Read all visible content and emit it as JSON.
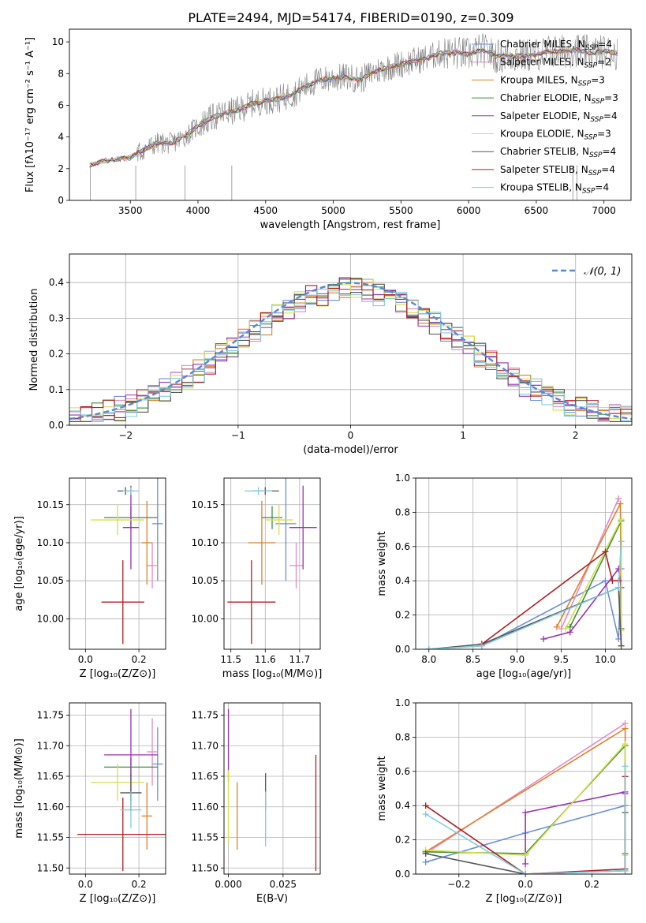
{
  "figure_title": "PLATE=2494, MJD=54174, FIBERID=0190, z=0.309",
  "colors": {
    "Chabrier MILES": "#6a8fd9",
    "Salpeter MILES": "#e38bc4",
    "Kroupa MILES": "#e0802a",
    "Chabrier ELODIE": "#3f8f3f",
    "Salpeter ELODIE": "#9a32b0",
    "Kroupa ELODIE": "#d6e04a",
    "Chabrier STELIB": "#555555",
    "Salpeter STELIB": "#b02020",
    "Kroupa STELIB": "#80cce0"
  },
  "chart_data": [
    {
      "id": "spectrum",
      "type": "line",
      "xlabel": "wavelength [Angstrom, rest frame]",
      "ylabel": "Flux [fλ10⁻¹⁷ erg cm⁻² s⁻¹ A⁻¹]",
      "xlim": [
        3050,
        7200
      ],
      "ylim": [
        0,
        10.8
      ],
      "xticks": [
        3500,
        4000,
        4500,
        5000,
        5500,
        6000,
        6500,
        7000
      ],
      "yticks": [
        0,
        2,
        4,
        6,
        8,
        10
      ],
      "legend_loc": "right",
      "legend": [
        {
          "name": "Chabrier MILES",
          "nssp": "4"
        },
        {
          "name": "Salpeter MILES",
          "nssp": "2"
        },
        {
          "name": "Kroupa MILES",
          "nssp": "3"
        },
        {
          "name": "Chabrier ELODIE",
          "nssp": "3"
        },
        {
          "name": "Salpeter ELODIE",
          "nssp": "4"
        },
        {
          "name": "Kroupa ELODIE",
          "nssp": "3"
        },
        {
          "name": "Chabrier STELIB",
          "nssp": "4"
        },
        {
          "name": "Salpeter STELIB",
          "nssp": "4"
        },
        {
          "name": "Kroupa STELIB",
          "nssp": "4"
        }
      ],
      "continuum": [
        [
          3200,
          2.2
        ],
        [
          3300,
          2.5
        ],
        [
          3400,
          2.6
        ],
        [
          3500,
          2.7
        ],
        [
          3600,
          3.2
        ],
        [
          3700,
          3.6
        ],
        [
          3800,
          3.6
        ],
        [
          3900,
          4.0
        ],
        [
          4000,
          4.7
        ],
        [
          4100,
          5.2
        ],
        [
          4200,
          5.5
        ],
        [
          4300,
          5.7
        ],
        [
          4400,
          6.1
        ],
        [
          4500,
          6.3
        ],
        [
          4600,
          6.4
        ],
        [
          4700,
          6.7
        ],
        [
          4800,
          7.2
        ],
        [
          4900,
          7.6
        ],
        [
          5000,
          7.7
        ],
        [
          5100,
          7.8
        ],
        [
          5200,
          7.6
        ],
        [
          5300,
          8.1
        ],
        [
          5400,
          8.4
        ],
        [
          5500,
          8.6
        ],
        [
          5600,
          8.8
        ],
        [
          5700,
          9.0
        ],
        [
          5800,
          9.3
        ],
        [
          5900,
          9.3
        ],
        [
          6000,
          9.2
        ],
        [
          6100,
          9.5
        ],
        [
          6200,
          9.1
        ],
        [
          6300,
          9.1
        ],
        [
          6400,
          9.1
        ],
        [
          6500,
          9.2
        ],
        [
          6600,
          9.4
        ],
        [
          6700,
          9.4
        ],
        [
          6800,
          9.5
        ],
        [
          6900,
          9.3
        ],
        [
          7000,
          9.4
        ],
        [
          7100,
          9.3
        ]
      ]
    },
    {
      "id": "residuals",
      "type": "histogram",
      "xlabel": "(data-model)/error",
      "ylabel": "Normed distribution",
      "xlim": [
        -2.5,
        2.5
      ],
      "ylim": [
        0,
        0.48
      ],
      "xticks": [
        -2,
        -1,
        0,
        1,
        2
      ],
      "yticks": [
        0.0,
        0.1,
        0.2,
        0.3,
        0.4
      ],
      "legend": "𝒩(0, 1)",
      "bin_edges_start": -2.5,
      "bin_width": 0.1,
      "grid": true
    },
    {
      "id": "age_vs_Z",
      "type": "errorbar",
      "xlabel": "Z [log₁₀(Z/Z⊙)]",
      "ylabel": "age  [log₁₀(age/yr)]",
      "xlim": [
        -0.06,
        0.3
      ],
      "ylim": [
        9.96,
        10.185
      ],
      "xticks": [
        0.0,
        0.2
      ],
      "yticks": [
        10.0,
        10.05,
        10.1,
        10.15
      ],
      "points": [
        {
          "model": "Chabrier MILES",
          "x": 0.27,
          "xerr": 0.02,
          "y": 10.125,
          "yerr": 0.075
        },
        {
          "model": "Salpeter MILES",
          "x": 0.25,
          "xerr": 0.02,
          "y": 10.07,
          "yerr": 0.03
        },
        {
          "model": "Kroupa MILES",
          "x": 0.23,
          "xerr": 0.02,
          "y": 10.1,
          "yerr": 0.055
        },
        {
          "model": "Chabrier ELODIE",
          "x": 0.17,
          "xerr": 0.1,
          "y": 10.133,
          "yerr": 0.015
        },
        {
          "model": "Salpeter ELODIE",
          "x": 0.17,
          "xerr": 0.03,
          "y": 10.12,
          "yerr": 0.055
        },
        {
          "model": "Kroupa ELODIE",
          "x": 0.12,
          "xerr": 0.1,
          "y": 10.13,
          "yerr": 0.02
        },
        {
          "model": "Chabrier STELIB",
          "x": 0.15,
          "xerr": 0.03,
          "y": 10.168,
          "yerr": 0.005
        },
        {
          "model": "Salpeter STELIB",
          "x": 0.14,
          "xerr": 0.08,
          "y": 10.022,
          "yerr": 0.055
        },
        {
          "model": "Kroupa STELIB",
          "x": 0.17,
          "xerr": 0.03,
          "y": 10.168,
          "yerr": 0.005
        }
      ]
    },
    {
      "id": "age_vs_mass",
      "type": "errorbar",
      "xlabel": "mass [log₁₀(M/M⊙)]",
      "xlim": [
        11.48,
        11.76
      ],
      "ylim": [
        9.96,
        10.185
      ],
      "xticks": [
        11.5,
        11.6,
        11.7
      ],
      "yticks": [
        10.0,
        10.05,
        10.1,
        10.15
      ],
      "points": [
        {
          "model": "Chabrier MILES",
          "x": 11.66,
          "xerr": 0.03,
          "y": 10.125,
          "yerr": 0.075
        },
        {
          "model": "Salpeter MILES",
          "x": 11.69,
          "xerr": 0.02,
          "y": 10.07,
          "yerr": 0.03
        },
        {
          "model": "Kroupa MILES",
          "x": 11.59,
          "xerr": 0.04,
          "y": 10.1,
          "yerr": 0.055
        },
        {
          "model": "Chabrier ELODIE",
          "x": 11.62,
          "xerr": 0.03,
          "y": 10.133,
          "yerr": 0.015
        },
        {
          "model": "Salpeter ELODIE",
          "x": 11.71,
          "xerr": 0.04,
          "y": 10.12,
          "yerr": 0.055
        },
        {
          "model": "Kroupa ELODIE",
          "x": 11.64,
          "xerr": 0.04,
          "y": 10.13,
          "yerr": 0.02
        },
        {
          "model": "Chabrier STELIB",
          "x": 11.6,
          "xerr": 0.04,
          "y": 10.168,
          "yerr": 0.005
        },
        {
          "model": "Salpeter STELIB",
          "x": 11.56,
          "xerr": 0.07,
          "y": 10.022,
          "yerr": 0.055
        },
        {
          "model": "Kroupa STELIB",
          "x": 11.58,
          "xerr": 0.04,
          "y": 10.168,
          "yerr": 0.005
        }
      ]
    },
    {
      "id": "weight_vs_age",
      "type": "line",
      "xlabel": "age  [log₁₀(age/yr)]",
      "ylabel": "mass weight",
      "xlim": [
        7.85,
        10.3
      ],
      "ylim": [
        0,
        1.0
      ],
      "xticks": [
        8.0,
        8.5,
        9.0,
        9.5,
        10.0
      ],
      "yticks": [
        0.0,
        0.2,
        0.4,
        0.6,
        0.8,
        1.0
      ],
      "series": [
        {
          "model": "Chabrier MILES",
          "x": [
            8.0,
            8.6,
            10.0,
            10.15,
            10.18
          ],
          "y": [
            0.0,
            0.02,
            0.4,
            0.06,
            0.47
          ]
        },
        {
          "model": "Salpeter MILES",
          "x": [
            9.5,
            10.15
          ],
          "y": [
            0.12,
            0.88
          ]
        },
        {
          "model": "Kroupa MILES",
          "x": [
            9.45,
            10.17,
            10.18
          ],
          "y": [
            0.13,
            0.85,
            0.02
          ]
        },
        {
          "model": "Chabrier ELODIE",
          "x": [
            9.6,
            10.18,
            10.18
          ],
          "y": [
            0.13,
            0.75,
            0.12
          ]
        },
        {
          "model": "Salpeter ELODIE",
          "x": [
            9.3,
            9.6,
            10.15,
            10.18
          ],
          "y": [
            0.06,
            0.1,
            0.47,
            0.36
          ]
        },
        {
          "model": "Kroupa ELODIE",
          "x": [
            9.55,
            10.18,
            10.18
          ],
          "y": [
            0.12,
            0.76,
            0.11
          ]
        },
        {
          "model": "Chabrier STELIB",
          "x": [
            8.0,
            8.6,
            10.15,
            10.18
          ],
          "y": [
            0.0,
            0.03,
            0.36,
            0.02
          ]
        },
        {
          "model": "Salpeter STELIB",
          "x": [
            8.6,
            10.0,
            10.08,
            10.15
          ],
          "y": [
            0.03,
            0.57,
            0.4,
            0.4
          ]
        },
        {
          "model": "Kroupa STELIB",
          "x": [
            8.0,
            8.6,
            10.15,
            10.18
          ],
          "y": [
            0.0,
            0.02,
            0.36,
            0.63
          ]
        }
      ]
    },
    {
      "id": "mass_vs_Z",
      "type": "errorbar",
      "xlabel": "Z [log₁₀(Z/Z⊙)]",
      "ylabel": "mass [log₁₀(M/M⊙)]",
      "xlim": [
        -0.06,
        0.3
      ],
      "ylim": [
        11.49,
        11.77
      ],
      "xticks": [
        0.0,
        0.2
      ],
      "yticks": [
        11.5,
        11.55,
        11.6,
        11.65,
        11.7,
        11.75
      ],
      "points": [
        {
          "model": "Chabrier MILES",
          "x": 0.27,
          "xerr": 0.02,
          "y": 11.67,
          "yerr": 0.06
        },
        {
          "model": "Salpeter MILES",
          "x": 0.25,
          "xerr": 0.02,
          "y": 11.69,
          "yerr": 0.055
        },
        {
          "model": "Kroupa MILES",
          "x": 0.23,
          "xerr": 0.02,
          "y": 11.585,
          "yerr": 0.055
        },
        {
          "model": "Chabrier ELODIE",
          "x": 0.17,
          "xerr": 0.1,
          "y": 11.665,
          "yerr": 0.015
        },
        {
          "model": "Salpeter ELODIE",
          "x": 0.17,
          "xerr": 0.1,
          "y": 11.685,
          "yerr": 0.075
        },
        {
          "model": "Kroupa ELODIE",
          "x": 0.12,
          "xerr": 0.1,
          "y": 11.64,
          "yerr": 0.03
        },
        {
          "model": "Chabrier STELIB",
          "x": 0.17,
          "xerr": 0.04,
          "y": 11.623,
          "yerr": 0.03
        },
        {
          "model": "Salpeter STELIB",
          "x": 0.14,
          "xerr": 0.17,
          "y": 11.555,
          "yerr": 0.06
        },
        {
          "model": "Kroupa STELIB",
          "x": 0.17,
          "xerr": 0.04,
          "y": 11.595,
          "yerr": 0.03
        }
      ]
    },
    {
      "id": "mass_vs_ebv",
      "type": "errorbar",
      "xlabel": "E(B-V)",
      "xlim": [
        -0.002,
        0.042
      ],
      "ylim": [
        11.49,
        11.77
      ],
      "xticks": [
        0.0,
        0.025
      ],
      "yticks": [
        11.5,
        11.55,
        11.6,
        11.65,
        11.7,
        11.75
      ],
      "points": [
        {
          "model": "Salpeter ELODIE",
          "x": 0.0,
          "xerr": 0,
          "y": 11.7,
          "yerr": 0.06
        },
        {
          "model": "Kroupa ELODIE",
          "x": 0.0,
          "xerr": 0,
          "y": 11.6,
          "yerr": 0.06
        },
        {
          "model": "Kroupa MILES",
          "x": 0.004,
          "xerr": 0,
          "y": 11.585,
          "yerr": 0.055
        },
        {
          "model": "Chabrier STELIB",
          "x": 0.017,
          "xerr": 0,
          "y": 11.625,
          "yerr": 0.03
        },
        {
          "model": "Kroupa STELIB",
          "x": 0.017,
          "xerr": 0,
          "y": 11.58,
          "yerr": 0.045
        },
        {
          "model": "Salpeter STELIB",
          "x": 0.04,
          "xerr": 0,
          "y": 11.59,
          "yerr": 0.095
        }
      ]
    },
    {
      "id": "weight_vs_Z",
      "type": "line",
      "xlabel": "Z [log₁₀(Z/Z⊙)]",
      "ylabel": "mass weight",
      "xlim": [
        -0.33,
        0.32
      ],
      "ylim": [
        0,
        1.0
      ],
      "xticks": [
        -0.2,
        0.0,
        0.2
      ],
      "yticks": [
        0.0,
        0.2,
        0.4,
        0.6,
        0.8,
        1.0
      ],
      "series": [
        {
          "model": "Chabrier MILES",
          "x": [
            -0.3,
            0.0,
            0.3,
            0.3
          ],
          "y": [
            0.07,
            0.24,
            0.4,
            0.02
          ]
        },
        {
          "model": "Salpeter MILES",
          "x": [
            -0.3,
            0.3
          ],
          "y": [
            0.12,
            0.88
          ]
        },
        {
          "model": "Kroupa MILES",
          "x": [
            -0.3,
            0.3,
            0.3
          ],
          "y": [
            0.13,
            0.85,
            0.02
          ]
        },
        {
          "model": "Chabrier ELODIE",
          "x": [
            -0.3,
            0.0,
            0.3,
            0.3
          ],
          "y": [
            0.13,
            0.12,
            0.75,
            0.12
          ]
        },
        {
          "model": "Salpeter ELODIE",
          "x": [
            0.0,
            0.0,
            0.3,
            0.3
          ],
          "y": [
            0.06,
            0.36,
            0.48,
            0.47
          ]
        },
        {
          "model": "Kroupa ELODIE",
          "x": [
            -0.3,
            0.0,
            0.3,
            0.3
          ],
          "y": [
            0.14,
            0.11,
            0.76,
            0.11
          ]
        },
        {
          "model": "Chabrier STELIB",
          "x": [
            -0.3,
            0.0,
            0.3,
            0.3
          ],
          "y": [
            0.12,
            0.0,
            0.02,
            0.36
          ]
        },
        {
          "model": "Salpeter STELIB",
          "x": [
            -0.3,
            0.0,
            0.3,
            0.3
          ],
          "y": [
            0.4,
            0.0,
            0.03,
            0.57
          ]
        },
        {
          "model": "Kroupa STELIB",
          "x": [
            -0.3,
            0.0,
            0.3,
            0.3
          ],
          "y": [
            0.35,
            0.0,
            0.02,
            0.63
          ]
        }
      ]
    }
  ]
}
